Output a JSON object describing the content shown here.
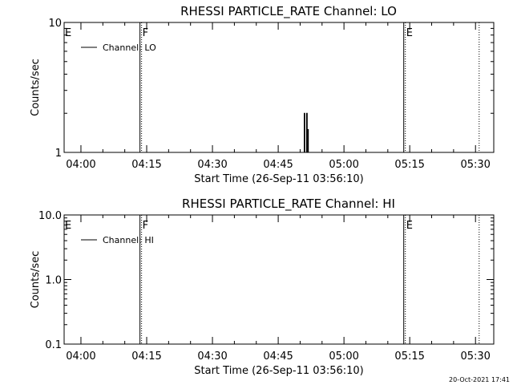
{
  "chart_data": [
    {
      "type": "line",
      "title": "RHESSI PARTICLE_RATE Channel: LO",
      "xlabel": "Start Time (26-Sep-11 03:56:10)",
      "ylabel": "Counts/sec",
      "yscale": "log",
      "ylim": [
        1,
        10
      ],
      "y_tick_labels": [
        "10",
        "1"
      ],
      "x_tick_labels": [
        "04:00",
        "04:15",
        "04:30",
        "04:45",
        "05:00",
        "05:15",
        "05:30"
      ],
      "xlim": [
        "03:56:10",
        "05:34:10"
      ],
      "legend": {
        "placement": "top-left",
        "entries": [
          "Channel: LO"
        ]
      },
      "markers": [
        {
          "label": "E",
          "time": "03:56:10",
          "style": "none"
        },
        {
          "label": "F",
          "time": "04:13:50",
          "style": "solid+dotted"
        },
        {
          "label": "E",
          "time": "05:14:00",
          "style": "solid+dotted"
        },
        {
          "label": "",
          "time": "05:30:50",
          "style": "dotted"
        }
      ],
      "series": [
        {
          "name": "Channel: LO",
          "points": [
            [
              "04:50:56",
              1
            ],
            [
              "04:50:56",
              2
            ],
            [
              "04:51:04",
              2
            ],
            [
              "04:51:04",
              1
            ],
            [
              "04:51:29",
              1
            ],
            [
              "04:51:29",
              2
            ],
            [
              "04:51:37",
              2
            ],
            [
              "04:51:37",
              1
            ],
            [
              "04:51:45",
              1
            ],
            [
              "04:51:45",
              1.5
            ],
            [
              "04:51:53",
              1.5
            ],
            [
              "04:51:53",
              1
            ]
          ]
        }
      ]
    },
    {
      "type": "line",
      "title": "RHESSI PARTICLE_RATE Channel: HI",
      "xlabel": "Start Time (26-Sep-11 03:56:10)",
      "ylabel": "Counts/sec",
      "yscale": "log",
      "ylim": [
        0.1,
        10
      ],
      "y_tick_labels": [
        "10.0",
        "1.0",
        "0.1"
      ],
      "x_tick_labels": [
        "04:00",
        "04:15",
        "04:30",
        "04:45",
        "05:00",
        "05:15",
        "05:30"
      ],
      "xlim": [
        "03:56:10",
        "05:34:10"
      ],
      "legend": {
        "placement": "top-left",
        "entries": [
          "Channel: HI"
        ]
      },
      "markers": [
        {
          "label": "E",
          "time": "03:56:10",
          "style": "none"
        },
        {
          "label": "F",
          "time": "04:13:50",
          "style": "solid+dotted"
        },
        {
          "label": "E",
          "time": "05:14:00",
          "style": "solid+dotted"
        },
        {
          "label": "",
          "time": "05:30:50",
          "style": "dotted"
        }
      ],
      "series": [
        {
          "name": "Channel: HI",
          "points": []
        }
      ]
    }
  ],
  "footer": {
    "timestamp": "20-Oct-2021 17:41"
  }
}
